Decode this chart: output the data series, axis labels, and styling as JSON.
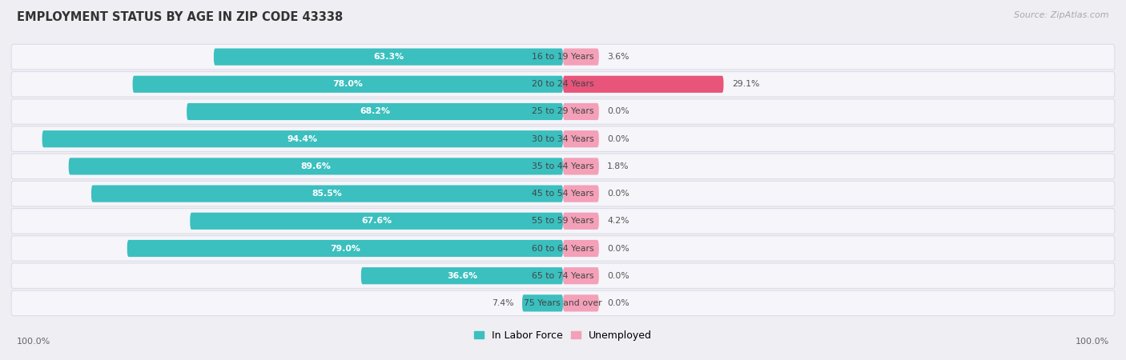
{
  "title": "EMPLOYMENT STATUS BY AGE IN ZIP CODE 43338",
  "source": "Source: ZipAtlas.com",
  "categories": [
    "16 to 19 Years",
    "20 to 24 Years",
    "25 to 29 Years",
    "30 to 34 Years",
    "35 to 44 Years",
    "45 to 54 Years",
    "55 to 59 Years",
    "60 to 64 Years",
    "65 to 74 Years",
    "75 Years and over"
  ],
  "in_labor_force": [
    63.3,
    78.0,
    68.2,
    94.4,
    89.6,
    85.5,
    67.6,
    79.0,
    36.6,
    7.4
  ],
  "unemployed": [
    3.6,
    29.1,
    0.0,
    0.0,
    1.8,
    0.0,
    4.2,
    0.0,
    0.0,
    0.0
  ],
  "labor_color": "#3BBFBF",
  "unemployed_color_high": "#E8547A",
  "unemployed_color_low": "#F4A0B8",
  "bg_color": "#EEEEF3",
  "row_bg": "#F5F5FA",
  "row_border": "#DDDDE8",
  "title_color": "#333333",
  "source_color": "#AAAAAA",
  "fig_width": 14.06,
  "fig_height": 4.5,
  "max_value": 100.0,
  "min_bar_show": 5.0
}
